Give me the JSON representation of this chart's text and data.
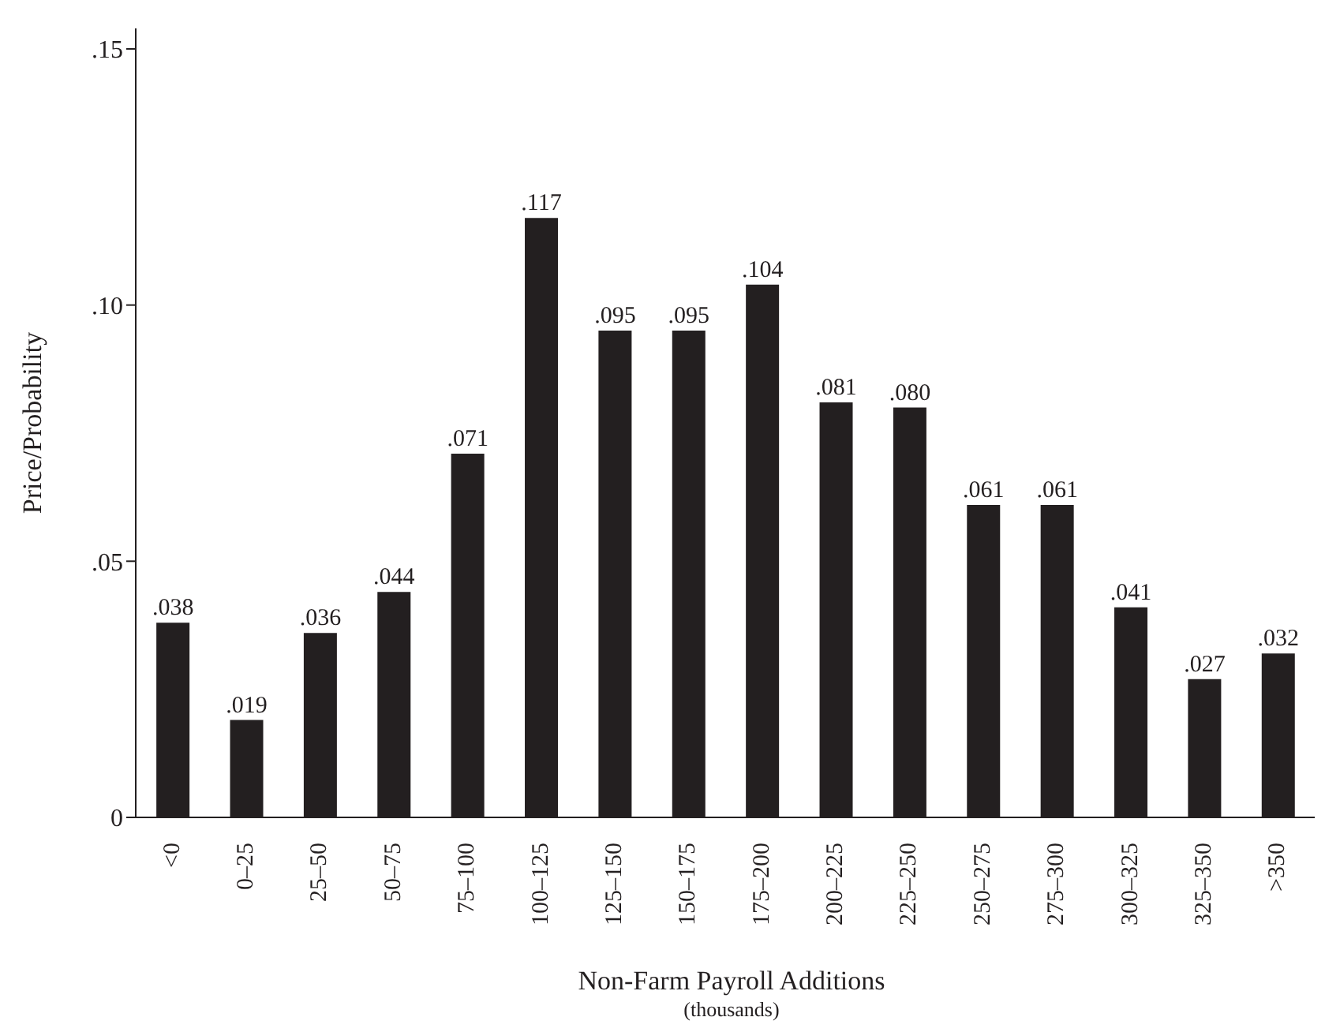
{
  "chart_data": {
    "type": "bar",
    "xlabel": "Non-Farm Payroll Additions",
    "ylabel": "Price/Probability",
    "annotations": [
      "(thousands)"
    ],
    "categories": [
      "<0",
      "0–25",
      "25–50",
      "50–75",
      "75–100",
      "100–125",
      "125–150",
      "150–175",
      "175–200",
      "200–225",
      "225–250",
      "250–275",
      "275–300",
      "300–325",
      "325–350",
      ">350"
    ],
    "values": [
      0.038,
      0.019,
      0.036,
      0.044,
      0.071,
      0.117,
      0.095,
      0.095,
      0.104,
      0.081,
      0.08,
      0.061,
      0.061,
      0.041,
      0.027,
      0.032
    ],
    "value_labels": [
      ".038",
      ".019",
      ".036",
      ".044",
      ".071",
      ".117",
      ".095",
      ".095",
      ".104",
      ".081",
      ".080",
      ".061",
      ".061",
      ".041",
      ".027",
      ".032"
    ],
    "color": "#231f20",
    "ylim": [
      0,
      0.154
    ],
    "yticks": [
      {
        "value": 0,
        "label": "0"
      },
      {
        "value": 0.05,
        "label": ".05"
      },
      {
        "value": 0.1,
        "label": ".10"
      },
      {
        "value": 0.15,
        "label": ".15"
      }
    ],
    "grid": false,
    "legend": false
  }
}
